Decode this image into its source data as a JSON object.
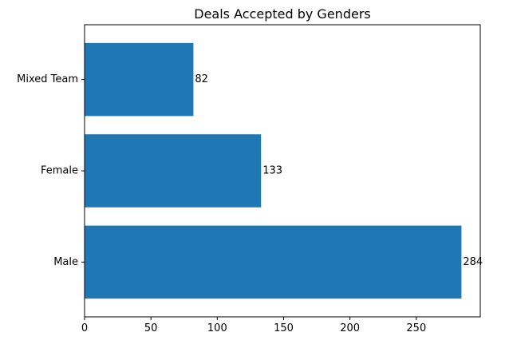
{
  "chart_data": {
    "type": "bar",
    "orientation": "horizontal",
    "title": "Deals Accepted by Genders",
    "xlabel": "",
    "ylabel": "",
    "categories": [
      "Male",
      "Female",
      "Mixed Team"
    ],
    "values": [
      284,
      133,
      82
    ],
    "data_labels": [
      "284",
      "133",
      "82"
    ],
    "xlim": [
      0,
      298.2
    ],
    "x_ticks": [
      0,
      50,
      100,
      150,
      200,
      250
    ],
    "grid": false,
    "legend": "none",
    "bar_color": "#1f77b4"
  }
}
